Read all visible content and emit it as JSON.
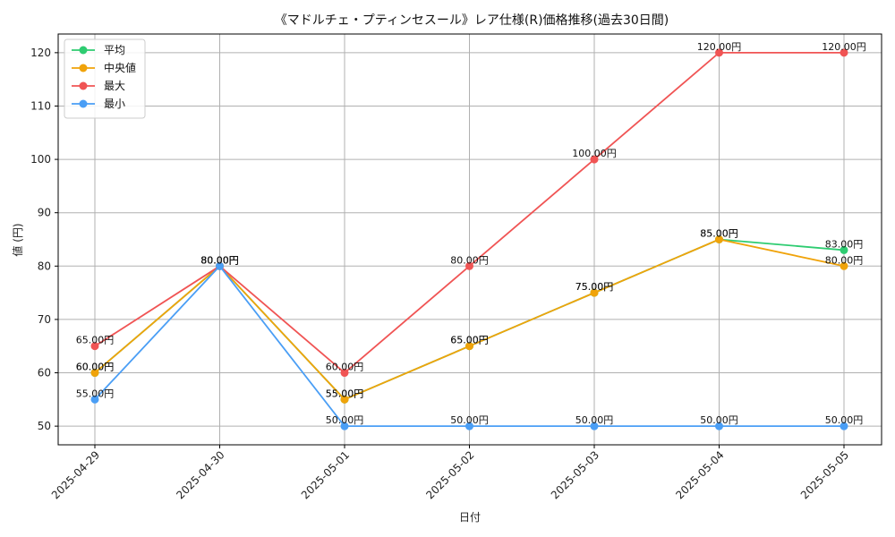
{
  "chart_data": {
    "type": "line",
    "title": "《マドルチェ・プティンセスール》レア仕様(R)価格推移(過去30日間)",
    "xlabel": "日付",
    "ylabel": "値 (円)",
    "categories": [
      "2025-04-29",
      "2025-04-30",
      "2025-05-01",
      "2025-05-02",
      "2025-05-03",
      "2025-05-04",
      "2025-05-05"
    ],
    "yticks": [
      50,
      60,
      70,
      80,
      90,
      100,
      110,
      120
    ],
    "ylim": [
      46.5,
      123.5
    ],
    "grid": true,
    "legend_position": "top-left",
    "value_suffix": "円",
    "series": [
      {
        "name": "平均",
        "color": "#2ecc71",
        "values": [
          60,
          80,
          55,
          65,
          75,
          85,
          83
        ],
        "labels": [
          "60.00円",
          "80.00円",
          "55.00円",
          "65.00円",
          "75.00円",
          "85.00円",
          "83.00円"
        ]
      },
      {
        "name": "中央値",
        "color": "#f0a30a",
        "values": [
          60,
          80,
          55,
          65,
          75,
          85,
          80
        ],
        "labels": [
          "60.00円",
          "80.00円",
          "55.00円",
          "65.00円",
          "75.00円",
          "85.00円",
          "80.00円"
        ]
      },
      {
        "name": "最大",
        "color": "#f05454",
        "values": [
          65,
          80,
          60,
          80,
          100,
          120,
          120
        ],
        "labels": [
          "65.00円",
          "80.00円",
          "60.00円",
          "80.00円",
          "100.00円",
          "120.00円",
          "120.00円"
        ]
      },
      {
        "name": "最小",
        "color": "#4a9ef5",
        "values": [
          55,
          80,
          50,
          50,
          50,
          50,
          50
        ],
        "labels": [
          "55.00円",
          "80.00円",
          "50.00円",
          "50.00円",
          "50.00円",
          "50.00円",
          "50.00円"
        ]
      }
    ]
  }
}
